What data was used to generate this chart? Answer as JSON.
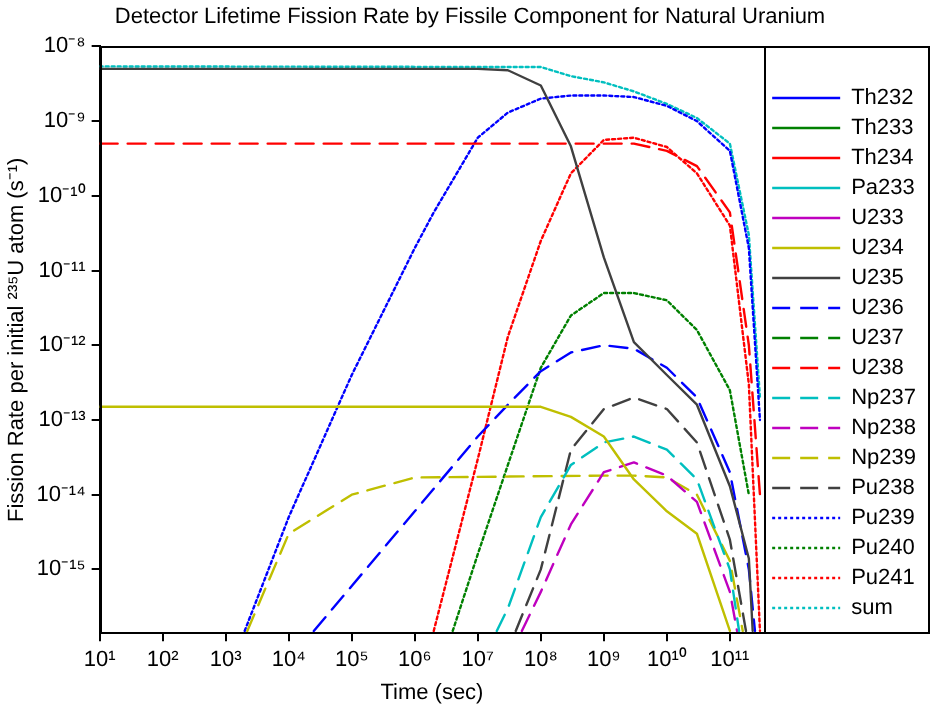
{
  "chart_data": {
    "type": "line",
    "title": "Detector Lifetime Fission Rate by Fissile Component for Natural Uranium",
    "xlabel": "Time (sec)",
    "ylabel": "Fission Rate per initial ²³⁵U atom (s⁻¹)",
    "log": "xy",
    "legend": "right",
    "xlim": [
      10,
      350000000000
    ],
    "ylim": [
      1.4e-16,
      1e-08
    ],
    "xticks": [
      {
        "value": 10,
        "label": "10¹"
      },
      {
        "value": 100,
        "label": "10²"
      },
      {
        "value": 1000,
        "label": "10³"
      },
      {
        "value": 10000,
        "label": "10⁴"
      },
      {
        "value": 100000,
        "label": "10⁵"
      },
      {
        "value": 1000000,
        "label": "10⁶"
      },
      {
        "value": 10000000,
        "label": "10⁷"
      },
      {
        "value": 100000000,
        "label": "10⁸"
      },
      {
        "value": 1000000000,
        "label": "10⁹"
      },
      {
        "value": 10000000000,
        "label": "10¹⁰"
      },
      {
        "value": 100000000000,
        "label": "10¹¹"
      }
    ],
    "yticks": [
      {
        "value": 1e-15,
        "label": "10⁻¹⁵"
      },
      {
        "value": 1e-14,
        "label": "10⁻¹⁴"
      },
      {
        "value": 1e-13,
        "label": "10⁻¹³"
      },
      {
        "value": 1e-12,
        "label": "10⁻¹²"
      },
      {
        "value": 1e-11,
        "label": "10⁻¹¹"
      },
      {
        "value": 1e-10,
        "label": "10⁻¹⁰"
      },
      {
        "value": 1e-09,
        "label": "10⁻⁹"
      },
      {
        "value": 1e-08,
        "label": "10⁻⁸"
      }
    ],
    "series": [
      {
        "name": "Th232",
        "color": "#0000ff",
        "line_style": "solid"
      },
      {
        "name": "Th233",
        "color": "#008000",
        "line_style": "solid"
      },
      {
        "name": "Th234",
        "color": "#ff0000",
        "line_style": "solid"
      },
      {
        "name": "Pa233",
        "color": "#00bfbf",
        "line_style": "solid"
      },
      {
        "name": "U233",
        "color": "#bf00bf",
        "line_style": "solid"
      },
      {
        "name": "U234",
        "color": "#bfbf00",
        "line_style": "solid",
        "x": [
          10,
          100000000,
          300000000,
          1000000000,
          3000000000,
          10000000000,
          30000000000,
          100000000000
        ],
        "values": [
          1.5e-13,
          1.5e-13,
          1.1e-13,
          6e-14,
          1.6e-14,
          6e-15,
          3e-15,
          1.5e-16
        ]
      },
      {
        "name": "U235",
        "color": "#404040",
        "line_style": "solid",
        "x": [
          10,
          10000000,
          30000000,
          100000000,
          300000000,
          1000000000,
          3000000000,
          10000000000,
          30000000000,
          100000000000,
          200000000000,
          230000000000
        ],
        "values": [
          5e-09,
          5e-09,
          4.8e-09,
          3e-09,
          4.6e-10,
          1.5e-11,
          1.1e-12,
          4e-13,
          1.6e-13,
          1.3e-14,
          1.4e-15,
          1.5e-16
        ]
      },
      {
        "name": "U236",
        "color": "#0000ff",
        "line_style": "dashed",
        "x": [
          25000,
          100000,
          1000000,
          10000000,
          30000000,
          100000000,
          300000000,
          1000000000,
          3000000000,
          10000000000,
          30000000000,
          100000000000,
          200000000000,
          250000000000
        ],
        "values": [
          1.5e-16,
          6e-16,
          6e-15,
          6e-14,
          1.6e-13,
          4.5e-13,
          8e-13,
          1e-12,
          9e-13,
          5e-13,
          2e-13,
          2e-14,
          1e-15,
          1.5e-16
        ]
      },
      {
        "name": "U237",
        "color": "#008000",
        "line_style": "dashed"
      },
      {
        "name": "U238",
        "color": "#ff0000",
        "line_style": "dashed",
        "x": [
          10,
          3000000000,
          10000000000,
          30000000000,
          100000000000,
          200000000000,
          300000000000
        ],
        "values": [
          5e-10,
          5e-10,
          4e-10,
          2.5e-10,
          6e-11,
          1e-12,
          1e-14
        ]
      },
      {
        "name": "Np237",
        "color": "#00bfbf",
        "line_style": "dashed",
        "x": [
          20000000,
          30000000,
          100000000,
          300000000,
          1000000000,
          3000000000,
          10000000000,
          30000000000,
          100000000000,
          140000000000
        ],
        "values": [
          1.5e-16,
          3e-16,
          5e-15,
          2.5e-14,
          5e-14,
          6e-14,
          4e-14,
          1.6e-14,
          1e-15,
          1.5e-16
        ]
      },
      {
        "name": "Np238",
        "color": "#bf00bf",
        "line_style": "dashed",
        "x": [
          50000000,
          100000000,
          300000000,
          1000000000,
          3000000000,
          10000000000,
          30000000000,
          100000000000,
          130000000000
        ],
        "values": [
          1.5e-16,
          5e-16,
          4e-15,
          2e-14,
          2.7e-14,
          1.8e-14,
          8e-15,
          5e-16,
          1.5e-16
        ]
      },
      {
        "name": "Np239",
        "color": "#bfbf00",
        "line_style": "dashed",
        "x": [
          2200,
          10000,
          100000,
          1000000,
          1000000000,
          3000000000,
          10000000000,
          30000000000,
          100000000000,
          160000000000
        ],
        "values": [
          1.5e-16,
          3e-15,
          1e-14,
          1.7e-14,
          1.8e-14,
          1.8e-14,
          1.7e-14,
          1e-14,
          1.3e-15,
          1.5e-16
        ]
      },
      {
        "name": "Pu238",
        "color": "#404040",
        "line_style": "dashed",
        "x": [
          40000000,
          100000000,
          300000000,
          1000000000,
          3000000000,
          10000000000,
          30000000000,
          100000000000,
          180000000000
        ],
        "values": [
          1.5e-16,
          1e-15,
          4e-14,
          1.4e-13,
          2e-13,
          1.4e-13,
          5e-14,
          2.5e-15,
          1.5e-16
        ]
      },
      {
        "name": "Pu239",
        "color": "#0000ff",
        "line_style": "dotted",
        "x": [
          2000,
          10000,
          100000,
          1000000,
          2000000,
          10000000,
          30000000,
          100000000,
          300000000,
          1000000000,
          3000000000,
          10000000000,
          30000000000,
          100000000000,
          200000000000,
          300000000000
        ],
        "values": [
          1.5e-16,
          5e-15,
          4e-13,
          2e-11,
          6e-11,
          6e-10,
          1.3e-09,
          2e-09,
          2.2e-09,
          2.2e-09,
          2.1e-09,
          1.6e-09,
          1e-09,
          4e-10,
          2e-11,
          1e-13
        ]
      },
      {
        "name": "Pu240",
        "color": "#008000",
        "line_style": "dotted",
        "x": [
          4000000,
          10000000,
          30000000,
          100000000,
          300000000,
          1000000000,
          3000000000,
          10000000000,
          30000000000,
          100000000000,
          200000000000
        ],
        "values": [
          1.5e-16,
          1.6e-15,
          2.5e-14,
          5e-13,
          2.5e-12,
          5e-12,
          5e-12,
          4e-12,
          1.6e-12,
          2.5e-13,
          1e-14
        ]
      },
      {
        "name": "Pu241",
        "color": "#ff0000",
        "line_style": "dotted",
        "x": [
          2000000,
          10000000,
          30000000,
          100000000,
          300000000,
          1000000000,
          3000000000,
          10000000000,
          30000000000,
          100000000000,
          200000000000,
          300000000000
        ],
        "values": [
          1.5e-16,
          3e-14,
          1.3e-12,
          2.5e-11,
          2e-10,
          5.6e-10,
          6e-10,
          4.5e-10,
          2e-10,
          4e-11,
          3e-13,
          1.5e-16
        ]
      },
      {
        "name": "sum",
        "color": "#00bfbf",
        "line_style": "dotted",
        "x": [
          10,
          100000000,
          300000000,
          1000000000,
          3000000000,
          10000000000,
          30000000000,
          100000000000,
          200000000000,
          300000000000
        ],
        "values": [
          5.4e-09,
          5.3e-09,
          4e-09,
          3.3e-09,
          2.5e-09,
          1.7e-09,
          1.1e-09,
          5e-10,
          3e-11,
          2e-13
        ]
      }
    ]
  }
}
